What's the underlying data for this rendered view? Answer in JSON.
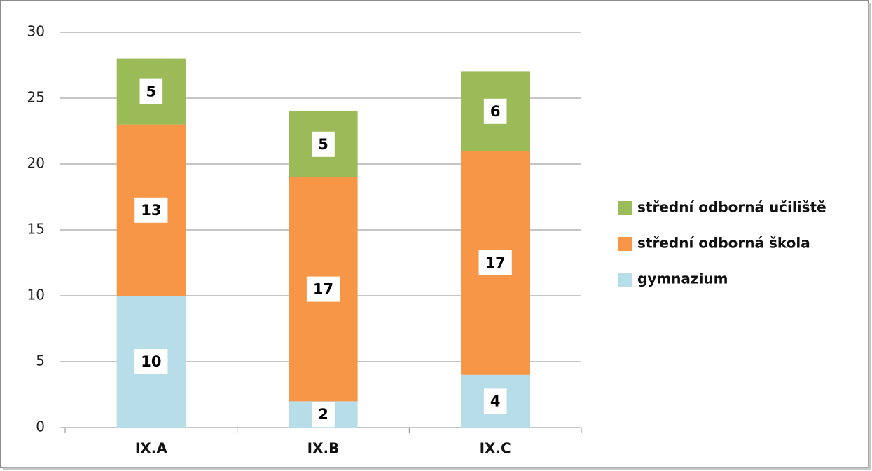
{
  "chart_data": {
    "type": "stacked_bar",
    "categories": [
      "IX.A",
      "IX.B",
      "IX.C"
    ],
    "series": [
      {
        "name": "gymnazium",
        "color": "#b7dde8",
        "values": [
          10,
          2,
          4
        ]
      },
      {
        "name": "střední odborná škola",
        "color": "#f79646",
        "values": [
          13,
          17,
          17
        ]
      },
      {
        "name": "střední odborná učiliště",
        "color": "#9bbb59",
        "values": [
          5,
          5,
          6
        ]
      }
    ],
    "ylim": [
      0,
      30
    ],
    "yticks": [
      0,
      5,
      10,
      15,
      20,
      25,
      30
    ],
    "grid": true,
    "legend": "right",
    "data_labels": true
  }
}
